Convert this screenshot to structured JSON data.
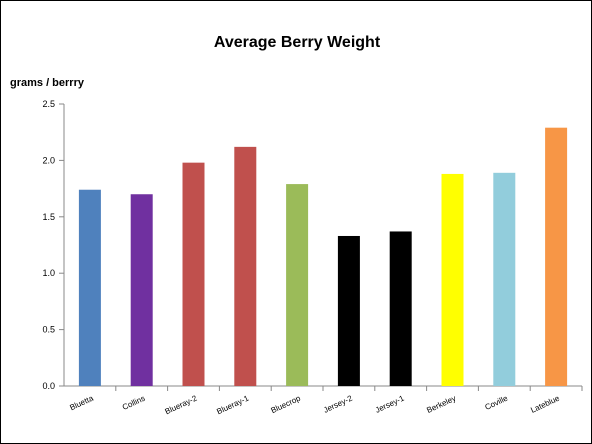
{
  "chart_data": {
    "type": "bar",
    "title": "Average Berry Weight",
    "ylabel": "grams / berrry",
    "xlabel": "",
    "ylim": [
      0,
      2.5
    ],
    "yticks": [
      "0.0",
      "0.5",
      "1.0",
      "1.5",
      "2.0",
      "2.5"
    ],
    "grid": false,
    "legend": "none",
    "categories": [
      "Bluetta",
      "Collins",
      "Blueray-2",
      "Blueray-1",
      "Bluecrop",
      "Jersey-2",
      "Jersey-1",
      "Berkeley",
      "Coville",
      "Lateblue"
    ],
    "values": [
      1.74,
      1.7,
      1.98,
      2.12,
      1.79,
      1.33,
      1.37,
      1.88,
      1.89,
      2.29
    ],
    "colors": [
      "#4f81bd",
      "#7030a0",
      "#c0504d",
      "#c0504d",
      "#9bbb59",
      "#000000",
      "#000000",
      "#ffff00",
      "#92cddc",
      "#f79646"
    ]
  }
}
